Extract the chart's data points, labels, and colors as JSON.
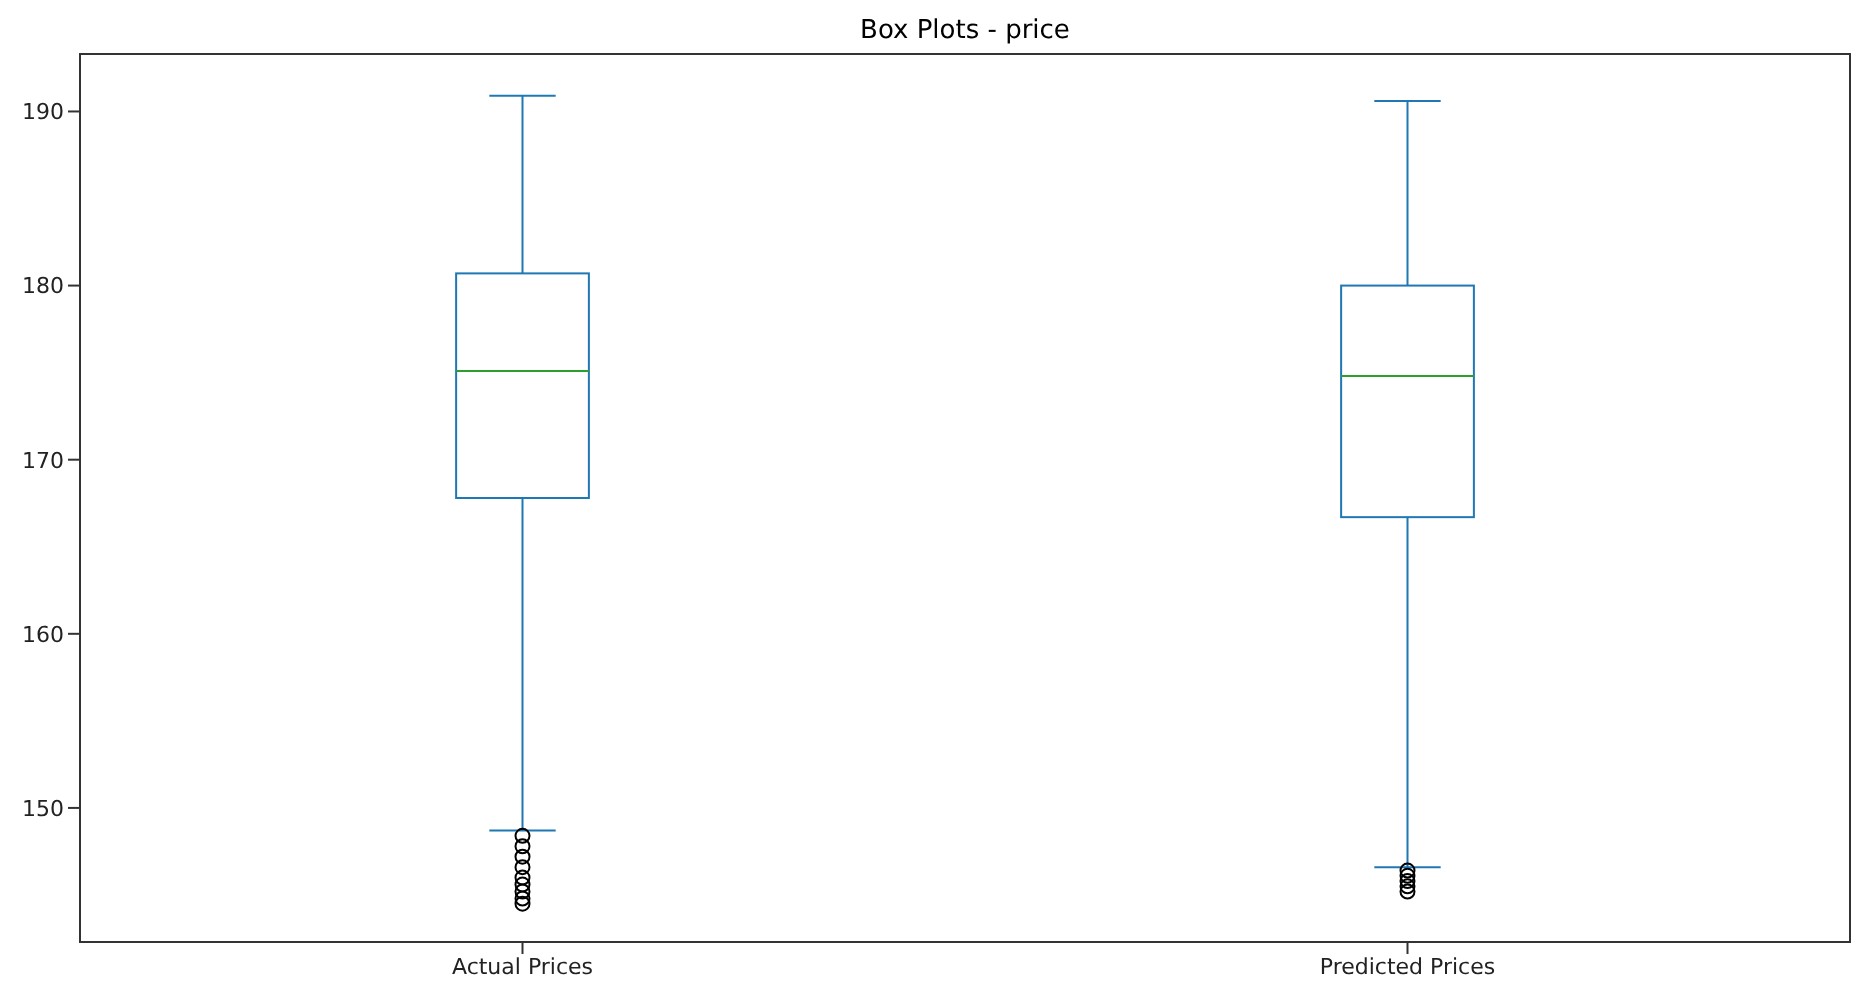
{
  "chart_data": {
    "type": "box",
    "title": "Box Plots - price",
    "categories": [
      "Actual Prices",
      "Predicted Prices"
    ],
    "color": "#1f77b4",
    "boxes": [
      {
        "low": 148.7,
        "q1": 167.8,
        "median": 175.1,
        "q3": 180.7,
        "high": 190.9,
        "outliers": [
          148.4,
          147.8,
          147.2,
          146.6,
          146.0,
          145.6,
          145.2,
          144.8,
          144.5
        ]
      },
      {
        "low": 146.6,
        "q1": 166.7,
        "median": 174.8,
        "q3": 180.0,
        "high": 190.6,
        "outliers": [
          146.4,
          146.1,
          145.8,
          145.5,
          145.2
        ]
      }
    ],
    "ylim": [
      142.3,
      193.3
    ],
    "yticks": [
      150,
      160,
      170,
      180,
      190
    ]
  }
}
